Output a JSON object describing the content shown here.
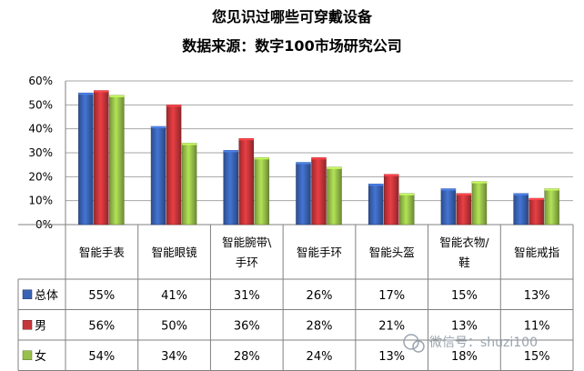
{
  "chart_data": {
    "type": "bar",
    "title": "您见识过哪些可穿戴设备",
    "subtitle": "数据来源：数字100市场研究公司",
    "yticks": [
      "0%",
      "10%",
      "20%",
      "30%",
      "40%",
      "50%",
      "60%"
    ],
    "ylim": [
      0,
      60
    ],
    "grid": true,
    "categories": [
      [
        "智能手表"
      ],
      [
        "智能眼镜"
      ],
      [
        "智能腕带\\",
        "手环"
      ],
      [
        "智能手环"
      ],
      [
        "智能头盔"
      ],
      [
        "智能衣物/",
        "鞋"
      ],
      [
        "智能戒指"
      ]
    ],
    "series": [
      {
        "name": "总体",
        "color": "#3a63b4",
        "values": [
          55,
          41,
          31,
          26,
          17,
          15,
          13
        ]
      },
      {
        "name": "男",
        "color": "#c6353a",
        "values": [
          56,
          50,
          36,
          28,
          21,
          13,
          11
        ]
      },
      {
        "name": "女",
        "color": "#98c04a",
        "values": [
          54,
          34,
          28,
          24,
          13,
          18,
          15
        ]
      }
    ],
    "legend": "data-table"
  },
  "watermark": "微信号：shuzi100"
}
